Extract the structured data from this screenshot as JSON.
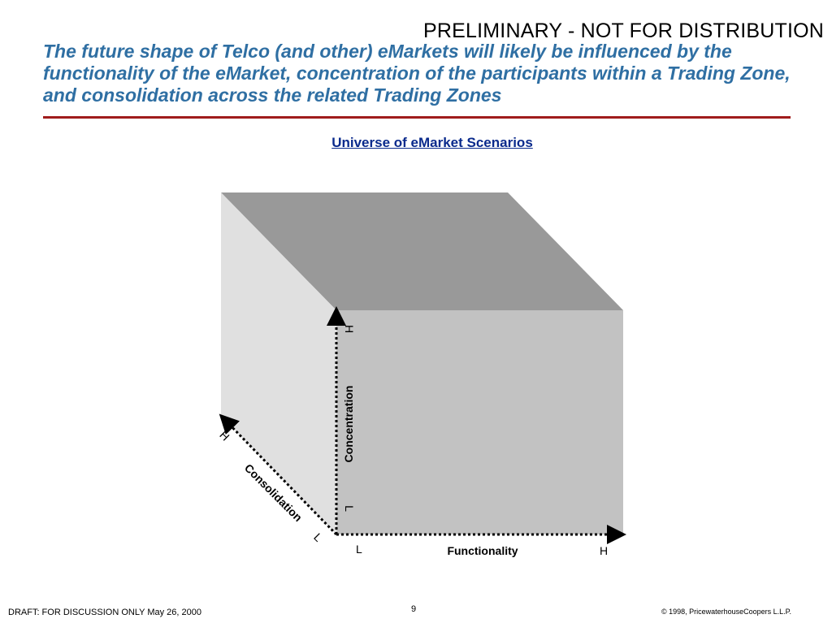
{
  "header": {
    "banner": "PRELIMINARY - NOT FOR DISTRIBUTION",
    "headline": "The future shape of Telco (and other) eMarkets will likely be influenced by the functionality of the eMarket, concentration of the participants within a Trading Zone, and consolidation across the related Trading Zones",
    "accent_color": "#a01c1c",
    "headline_color": "#2f6fa3"
  },
  "diagram": {
    "subtitle": "Universe of eMarket Scenarios",
    "axes": {
      "functionality": {
        "label": "Functionality",
        "low": "L",
        "high": "H"
      },
      "concentration": {
        "label": "Concentration",
        "low": "L",
        "high": "H"
      },
      "consolidation": {
        "label": "Consolidation",
        "low": "L",
        "high": "H"
      }
    },
    "face_colors": {
      "top": "#999999",
      "side": "#e0e0e0",
      "front": "#c2c2c2"
    }
  },
  "footer": {
    "draft_note": "DRAFT: FOR DISCUSSION ONLY May 26, 2000",
    "page_number": "9",
    "copyright": "© 1998, PricewaterhouseCoopers L.L.P."
  }
}
